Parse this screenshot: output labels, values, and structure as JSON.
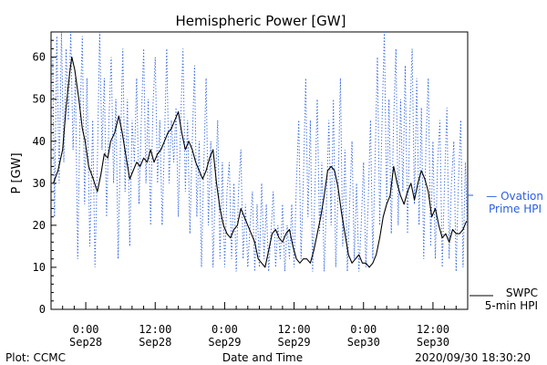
{
  "chart_data": {
    "type": "line",
    "title": "Hemispheric Power [GW]",
    "ylabel": "P [GW]",
    "xlabel": "Date and Time",
    "ylim": [
      0,
      66
    ],
    "yticks": [
      0,
      10,
      20,
      30,
      40,
      50,
      60
    ],
    "xlim_hours": [
      -6,
      66
    ],
    "xticks": [
      {
        "hour": 0,
        "line1": "0:00",
        "line2": "Sep28"
      },
      {
        "hour": 12,
        "line1": "12:00",
        "line2": "Sep28"
      },
      {
        "hour": 24,
        "line1": "0:00",
        "line2": "Sep29"
      },
      {
        "hour": 36,
        "line1": "12:00",
        "line2": "Sep29"
      },
      {
        "hour": 48,
        "line1": "0:00",
        "line2": "Sep30"
      },
      {
        "hour": 60,
        "line1": "12:00",
        "line2": "Sep30"
      }
    ],
    "grid": false,
    "series": [
      {
        "name": "SWPC 5-min HPI",
        "style": "solid",
        "color": "#000000",
        "points": [
          [
            -5.6,
            30
          ],
          [
            -4.8,
            33
          ],
          [
            -4.0,
            38
          ],
          [
            -3.4,
            48
          ],
          [
            -2.8,
            56
          ],
          [
            -2.4,
            60
          ],
          [
            -1.9,
            57
          ],
          [
            -1.2,
            50
          ],
          [
            -0.6,
            43
          ],
          [
            -0.1,
            40
          ],
          [
            0.5,
            34
          ],
          [
            1.3,
            31
          ],
          [
            2.0,
            28
          ],
          [
            2.6,
            32
          ],
          [
            3.2,
            37
          ],
          [
            3.8,
            36
          ],
          [
            4.3,
            40
          ],
          [
            5.0,
            42
          ],
          [
            5.7,
            46
          ],
          [
            6.3,
            42
          ],
          [
            7.0,
            36
          ],
          [
            7.6,
            31
          ],
          [
            8.2,
            33
          ],
          [
            8.8,
            35
          ],
          [
            9.4,
            34
          ],
          [
            10.0,
            36
          ],
          [
            10.6,
            35
          ],
          [
            11.2,
            38
          ],
          [
            11.8,
            35
          ],
          [
            12.4,
            37
          ],
          [
            13.0,
            38
          ],
          [
            13.6,
            40
          ],
          [
            14.2,
            42
          ],
          [
            14.8,
            43
          ],
          [
            15.4,
            45
          ],
          [
            16.0,
            47
          ],
          [
            16.6,
            42
          ],
          [
            17.2,
            38
          ],
          [
            17.8,
            40
          ],
          [
            18.4,
            38
          ],
          [
            19.0,
            35
          ],
          [
            19.6,
            33
          ],
          [
            20.2,
            31
          ],
          [
            20.8,
            33
          ],
          [
            21.4,
            36
          ],
          [
            22.0,
            38
          ],
          [
            22.6,
            30
          ],
          [
            23.2,
            24
          ],
          [
            23.8,
            20
          ],
          [
            24.4,
            18
          ],
          [
            25.0,
            17
          ],
          [
            25.6,
            19
          ],
          [
            26.2,
            20
          ],
          [
            26.8,
            24
          ],
          [
            27.4,
            22
          ],
          [
            28.0,
            20
          ],
          [
            28.6,
            18
          ],
          [
            29.2,
            16
          ],
          [
            29.8,
            12
          ],
          [
            30.4,
            11
          ],
          [
            31.0,
            10
          ],
          [
            31.6,
            14
          ],
          [
            32.2,
            18
          ],
          [
            32.8,
            19
          ],
          [
            33.4,
            17
          ],
          [
            34.0,
            16
          ],
          [
            34.6,
            18
          ],
          [
            35.2,
            19
          ],
          [
            35.8,
            15
          ],
          [
            36.4,
            12
          ],
          [
            37.0,
            11
          ],
          [
            37.6,
            12
          ],
          [
            38.2,
            12
          ],
          [
            38.8,
            11
          ],
          [
            39.4,
            14
          ],
          [
            40.0,
            18
          ],
          [
            40.6,
            22
          ],
          [
            41.2,
            27
          ],
          [
            41.8,
            33
          ],
          [
            42.4,
            34
          ],
          [
            43.0,
            33
          ],
          [
            43.6,
            29
          ],
          [
            44.2,
            23
          ],
          [
            44.8,
            18
          ],
          [
            45.4,
            13
          ],
          [
            46.0,
            11
          ],
          [
            46.6,
            12
          ],
          [
            47.2,
            13
          ],
          [
            47.8,
            11
          ],
          [
            48.4,
            11
          ],
          [
            49.0,
            10
          ],
          [
            49.6,
            11
          ],
          [
            50.2,
            13
          ],
          [
            50.8,
            17
          ],
          [
            51.4,
            22
          ],
          [
            52.0,
            25
          ],
          [
            52.6,
            27
          ],
          [
            53.2,
            34
          ],
          [
            53.8,
            30
          ],
          [
            54.4,
            27
          ],
          [
            55.0,
            25
          ],
          [
            55.6,
            28
          ],
          [
            56.2,
            30
          ],
          [
            56.8,
            26
          ],
          [
            57.4,
            30
          ],
          [
            58.0,
            33
          ],
          [
            58.6,
            31
          ],
          [
            59.2,
            28
          ],
          [
            59.8,
            22
          ],
          [
            60.4,
            24
          ],
          [
            61.0,
            20
          ],
          [
            61.6,
            17
          ],
          [
            62.2,
            18
          ],
          [
            62.8,
            16
          ],
          [
            63.4,
            19
          ],
          [
            64.0,
            18
          ],
          [
            64.6,
            18
          ],
          [
            65.2,
            19
          ],
          [
            65.8,
            21
          ]
        ]
      },
      {
        "name": "Ovation Prime HPI",
        "style": "dotted",
        "color": "#2b5fe0",
        "points": [
          [
            -5.7,
            60
          ],
          [
            -5.4,
            22
          ],
          [
            -5.0,
            65
          ],
          [
            -4.6,
            30
          ],
          [
            -4.2,
            66
          ],
          [
            -3.8,
            35
          ],
          [
            -3.4,
            62
          ],
          [
            -3.0,
            45
          ],
          [
            -2.6,
            66
          ],
          [
            -2.2,
            38
          ],
          [
            -1.8,
            55
          ],
          [
            -1.4,
            12
          ],
          [
            -1.0,
            45
          ],
          [
            -0.6,
            65
          ],
          [
            -0.2,
            25
          ],
          [
            0.2,
            55
          ],
          [
            0.7,
            15
          ],
          [
            1.2,
            45
          ],
          [
            1.6,
            10
          ],
          [
            2.0,
            35
          ],
          [
            2.4,
            66
          ],
          [
            2.8,
            38
          ],
          [
            3.2,
            55
          ],
          [
            3.6,
            22
          ],
          [
            4.0,
            45
          ],
          [
            4.4,
            60
          ],
          [
            4.8,
            30
          ],
          [
            5.2,
            50
          ],
          [
            5.6,
            12
          ],
          [
            6.0,
            40
          ],
          [
            6.4,
            62
          ],
          [
            6.8,
            28
          ],
          [
            7.2,
            50
          ],
          [
            7.6,
            15
          ],
          [
            8.0,
            45
          ],
          [
            8.4,
            35
          ],
          [
            8.8,
            55
          ],
          [
            9.2,
            25
          ],
          [
            9.6,
            45
          ],
          [
            10.0,
            62
          ],
          [
            10.4,
            30
          ],
          [
            10.8,
            50
          ],
          [
            11.2,
            20
          ],
          [
            11.6,
            48
          ],
          [
            12.0,
            60
          ],
          [
            12.4,
            30
          ],
          [
            12.8,
            45
          ],
          [
            13.2,
            20
          ],
          [
            13.6,
            40
          ],
          [
            14.0,
            62
          ],
          [
            14.4,
            30
          ],
          [
            14.8,
            45
          ],
          [
            15.2,
            35
          ],
          [
            15.6,
            48
          ],
          [
            16.0,
            22
          ],
          [
            16.4,
            45
          ],
          [
            16.8,
            62
          ],
          [
            17.2,
            28
          ],
          [
            17.6,
            45
          ],
          [
            18.0,
            18
          ],
          [
            18.4,
            40
          ],
          [
            18.8,
            58
          ],
          [
            19.2,
            22
          ],
          [
            19.6,
            40
          ],
          [
            20.0,
            10
          ],
          [
            20.4,
            35
          ],
          [
            20.8,
            55
          ],
          [
            21.2,
            20
          ],
          [
            21.6,
            40
          ],
          [
            22.0,
            10
          ],
          [
            22.4,
            30
          ],
          [
            22.8,
            45
          ],
          [
            23.2,
            12
          ],
          [
            23.6,
            35
          ],
          [
            24.0,
            10
          ],
          [
            24.4,
            28
          ],
          [
            24.8,
            35
          ],
          [
            25.2,
            12
          ],
          [
            25.6,
            30
          ],
          [
            26.0,
            9
          ],
          [
            26.4,
            28
          ],
          [
            26.8,
            38
          ],
          [
            27.2,
            12
          ],
          [
            27.6,
            25
          ],
          [
            28.0,
            10
          ],
          [
            28.4,
            20
          ],
          [
            28.8,
            28
          ],
          [
            29.2,
            9
          ],
          [
            29.6,
            25
          ],
          [
            30.0,
            10
          ],
          [
            30.4,
            30
          ],
          [
            30.8,
            12
          ],
          [
            31.2,
            25
          ],
          [
            31.6,
            9
          ],
          [
            32.0,
            18
          ],
          [
            32.4,
            28
          ],
          [
            32.8,
            10
          ],
          [
            33.2,
            20
          ],
          [
            33.6,
            12
          ],
          [
            34.0,
            25
          ],
          [
            34.4,
            9
          ],
          [
            34.8,
            20
          ],
          [
            35.2,
            12
          ],
          [
            35.6,
            25
          ],
          [
            36.0,
            10
          ],
          [
            36.4,
            30
          ],
          [
            36.8,
            45
          ],
          [
            37.2,
            12
          ],
          [
            37.6,
            30
          ],
          [
            38.0,
            55
          ],
          [
            38.4,
            22
          ],
          [
            38.8,
            45
          ],
          [
            39.2,
            9
          ],
          [
            39.6,
            28
          ],
          [
            40.0,
            50
          ],
          [
            40.4,
            18
          ],
          [
            40.8,
            35
          ],
          [
            41.2,
            9
          ],
          [
            41.6,
            25
          ],
          [
            42.0,
            45
          ],
          [
            42.4,
            20
          ],
          [
            42.8,
            50
          ],
          [
            43.2,
            10
          ],
          [
            43.6,
            28
          ],
          [
            44.0,
            55
          ],
          [
            44.4,
            15
          ],
          [
            44.8,
            38
          ],
          [
            45.2,
            9
          ],
          [
            45.6,
            25
          ],
          [
            46.0,
            40
          ],
          [
            46.4,
            12
          ],
          [
            46.8,
            30
          ],
          [
            47.2,
            9
          ],
          [
            47.6,
            20
          ],
          [
            48.0,
            35
          ],
          [
            48.4,
            10
          ],
          [
            48.8,
            25
          ],
          [
            49.2,
            45
          ],
          [
            49.6,
            12
          ],
          [
            50.0,
            35
          ],
          [
            50.4,
            60
          ],
          [
            50.8,
            20
          ],
          [
            51.2,
            45
          ],
          [
            51.6,
            66
          ],
          [
            52.0,
            25
          ],
          [
            52.4,
            50
          ],
          [
            52.8,
            18
          ],
          [
            53.2,
            45
          ],
          [
            53.6,
            62
          ],
          [
            54.0,
            20
          ],
          [
            54.4,
            50
          ],
          [
            54.8,
            28
          ],
          [
            55.2,
            58
          ],
          [
            55.6,
            18
          ],
          [
            56.0,
            45
          ],
          [
            56.4,
            62
          ],
          [
            56.8,
            25
          ],
          [
            57.2,
            55
          ],
          [
            57.6,
            20
          ],
          [
            58.0,
            48
          ],
          [
            58.4,
            12
          ],
          [
            58.8,
            40
          ],
          [
            59.2,
            55
          ],
          [
            59.6,
            15
          ],
          [
            60.0,
            40
          ],
          [
            60.4,
            12
          ],
          [
            60.8,
            35
          ],
          [
            61.2,
            45
          ],
          [
            61.6,
            10
          ],
          [
            62.0,
            30
          ],
          [
            62.4,
            48
          ],
          [
            62.8,
            12
          ],
          [
            63.2,
            30
          ],
          [
            63.6,
            40
          ],
          [
            64.0,
            9
          ],
          [
            64.4,
            30
          ],
          [
            64.8,
            45
          ],
          [
            65.2,
            10
          ],
          [
            65.6,
            35
          ],
          [
            65.9,
            20
          ]
        ]
      }
    ],
    "legend": [
      {
        "series": "Ovation Prime HPI",
        "line1": "— Ovation",
        "line2": "Prime HPI",
        "color": "#2b5fe0",
        "placement": "right"
      },
      {
        "series": "SWPC 5-min HPI",
        "line1": "SWPC",
        "line2": "5-min HPI",
        "color": "#000000",
        "placement": "right"
      }
    ]
  },
  "footer": {
    "plot_credit": "Plot: CCMC",
    "timestamp": "2020/09/30 18:30:20"
  },
  "colors": {
    "axis": "#000000",
    "ovation": "#2b5fe0",
    "swpc": "#000000",
    "background": "#ffffff"
  }
}
